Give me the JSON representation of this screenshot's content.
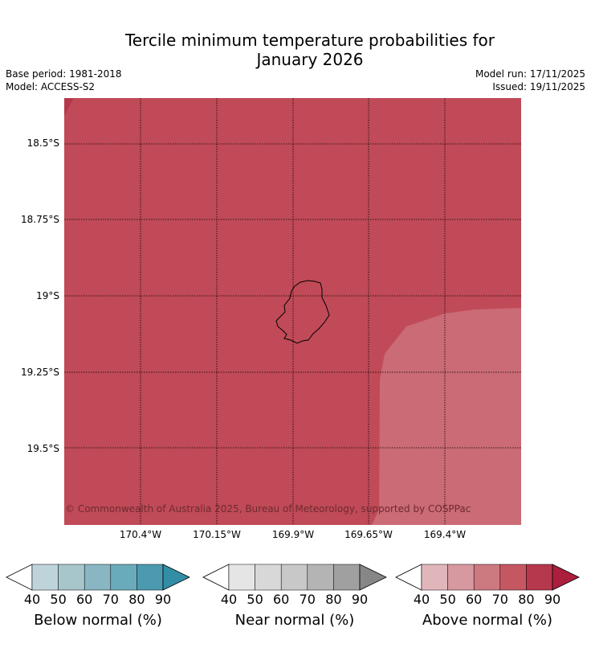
{
  "title_line1": "Tercile minimum temperature probabilities for",
  "title_line2": "January 2026",
  "base_period": "Base period: 1981-2018",
  "model": "Model: ACCESS-S2",
  "model_run": "Model run: 17/11/2025",
  "issued": "Issued: 19/11/2025",
  "latitudes": [
    "18.5°S",
    "18.75°S",
    "19°S",
    "19.25°S",
    "19.5°S"
  ],
  "longitudes": [
    "170.4°W",
    "170.15°W",
    "169.9°W",
    "169.65°W",
    "169.4°W"
  ],
  "copyright": "© Commonwealth of Australia 2025, Bureau of Meteorology, supported by COSPPac",
  "colorbars": [
    {
      "label": "Below normal (%)",
      "colors": [
        "#bfd3da",
        "#a7c6cc",
        "#89b6c3",
        "#6aabbb",
        "#4c9ab0"
      ],
      "extend_color": "#318ea6",
      "ticks": [
        "40",
        "50",
        "60",
        "70",
        "80",
        "90"
      ]
    },
    {
      "label": "Near normal (%)",
      "colors": [
        "#e5e5e5",
        "#d8d8d8",
        "#c8c8c8",
        "#b4b4b4",
        "#a0a0a0"
      ],
      "extend_color": "#878787",
      "ticks": [
        "40",
        "50",
        "60",
        "70",
        "80",
        "90"
      ]
    },
    {
      "label": "Above normal (%)",
      "colors": [
        "#e1b6bb",
        "#d7989f",
        "#cd7980",
        "#c55763",
        "#b6384c"
      ],
      "extend_color": "#ab1e3c",
      "ticks": [
        "40",
        "50",
        "60",
        "70",
        "80",
        "90"
      ]
    }
  ],
  "colors": {
    "map_main": "#c04a57",
    "map_light": "#ca6b75",
    "map_dark": "#b6384c"
  }
}
